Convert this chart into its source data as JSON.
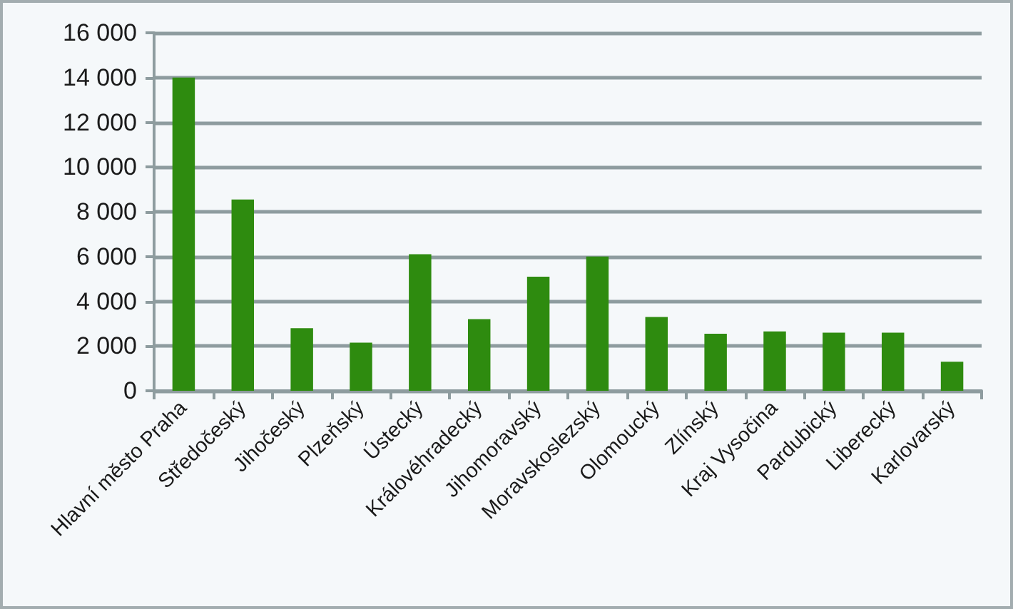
{
  "chart_data": {
    "type": "bar",
    "categories": [
      "Hlavní město Praha",
      "Středočeský",
      "Jihočeský",
      "Plzeňský",
      "Ústecký",
      "Královéhradecký",
      "Jihomoravský",
      "Moravskoslezský",
      "Olomoucký",
      "Zlínský",
      "Kraj Vysočina",
      "Pardubický",
      "Liberecký",
      "Karlovarský"
    ],
    "values": [
      14000,
      8550,
      2800,
      2150,
      6100,
      3200,
      5100,
      6000,
      3300,
      2550,
      2650,
      2600,
      2600,
      1300
    ],
    "color": "#2e8b0f",
    "ylim": [
      0,
      16000
    ],
    "yticks": [
      0,
      {
        "value": 2000,
        "label": "2 000"
      },
      {
        "value": 4000,
        "label": "4 000"
      },
      {
        "value": 6000,
        "label": "6 000"
      },
      {
        "value": 8000,
        "label": "8 000"
      },
      {
        "value": 10000,
        "label": "10 000"
      },
      {
        "value": 12000,
        "label": "12 000"
      },
      {
        "value": 14000,
        "label": "14 000"
      },
      {
        "value": 16000,
        "label": "16 000"
      }
    ],
    "grid": "y"
  }
}
